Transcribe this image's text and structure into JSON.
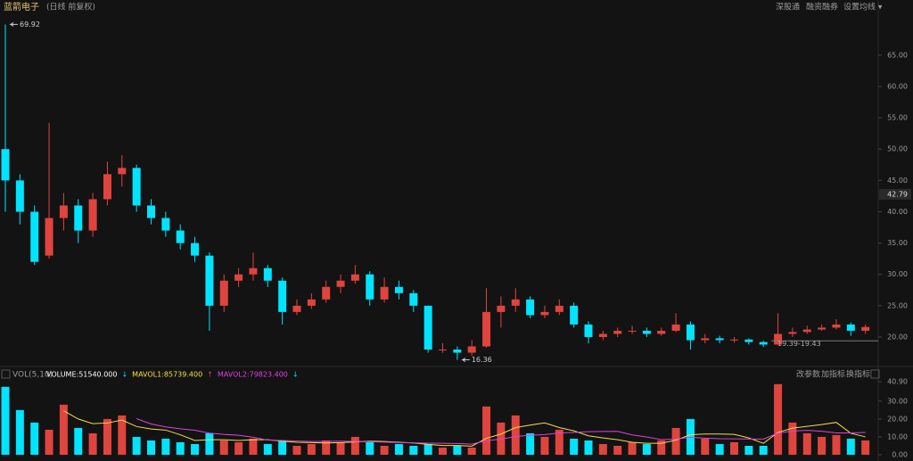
{
  "header": {
    "name": "蓝箭电子",
    "mode": "(日线 前复权)",
    "buttons": [
      "深股通",
      "融资融券",
      "设置均线 ▾"
    ]
  },
  "chart_data": [
    {
      "type": "candlestick",
      "up_color": "#e0443e",
      "down_color": "#00e4ff",
      "open": [
        50,
        45,
        40,
        33,
        39,
        41,
        37,
        42,
        46,
        47,
        41,
        39,
        37,
        35,
        33,
        25,
        29,
        30,
        31,
        29,
        24,
        25,
        26,
        28,
        29,
        30,
        26,
        28,
        27,
        25,
        18,
        18,
        17.5,
        18.5,
        24,
        25,
        26,
        23.5,
        24,
        25,
        22,
        20,
        20.5,
        21,
        21,
        20.5,
        21,
        22,
        19.5,
        19.8,
        19.5,
        19.6,
        19.2,
        18.8,
        20.5,
        20.8,
        21.2,
        21.5,
        22,
        21
      ],
      "high": [
        69.92,
        46,
        41,
        54.2,
        43,
        42,
        43,
        48,
        49,
        47.5,
        42,
        40,
        38,
        36,
        33.5,
        30,
        31,
        33.5,
        31.5,
        29.5,
        26,
        27,
        29,
        30,
        31.5,
        30.5,
        29.5,
        29,
        27.5,
        25,
        19,
        18.5,
        19.5,
        27.8,
        26.5,
        27.8,
        26.5,
        25,
        26,
        25.5,
        22.5,
        21,
        21.5,
        21.8,
        21.5,
        21.5,
        23.8,
        22.5,
        20.5,
        20.2,
        20,
        19.8,
        19.4,
        23.8,
        21.5,
        21.8,
        22,
        22.8,
        22.3,
        22
      ],
      "low": [
        40,
        38,
        31.5,
        32.5,
        37,
        35,
        36,
        41,
        44,
        40,
        38,
        36,
        34,
        32,
        21,
        24,
        28,
        29,
        28,
        22,
        23.5,
        24.5,
        25.5,
        27,
        28.5,
        25,
        25.5,
        26,
        24,
        17.5,
        17.5,
        16.36,
        17,
        18.3,
        21.5,
        24,
        23,
        23,
        23.5,
        21.5,
        19,
        19.5,
        20,
        20.5,
        20,
        20.2,
        20.8,
        18,
        19,
        19,
        19.1,
        18.8,
        18.4,
        18.7,
        20,
        20.5,
        21,
        21.2,
        20.2,
        20.5
      ],
      "close": [
        45,
        40,
        32,
        39,
        41,
        37,
        42,
        46,
        47,
        41,
        39,
        37,
        35,
        33,
        25,
        29,
        30,
        31,
        29,
        24,
        25,
        26,
        28,
        29,
        30,
        26,
        28,
        27,
        25,
        18,
        18,
        17.5,
        18.5,
        24,
        25,
        26,
        23.5,
        24,
        25,
        22,
        20,
        20.5,
        21,
        21,
        20.5,
        21,
        22,
        19.5,
        19.8,
        19.5,
        19.6,
        19.2,
        18.8,
        20.5,
        20.8,
        21.2,
        21.5,
        22,
        21,
        21.6
      ],
      "ylim": [
        15.44,
        72.1
      ],
      "yticks": [
        {
          "value": 20,
          "label": "20.00"
        },
        {
          "value": 25,
          "label": "25.00"
        },
        {
          "value": 30,
          "label": "30.00"
        },
        {
          "value": 35,
          "label": "35.00"
        },
        {
          "value": 40,
          "label": "40.00"
        },
        {
          "value": 45,
          "label": "45.00"
        },
        {
          "value": 50,
          "label": "50.00"
        },
        {
          "value": 55,
          "label": "55.00"
        },
        {
          "value": 60,
          "label": "60.00"
        },
        {
          "value": 65,
          "label": "65.00"
        }
      ],
      "max_value": 69.92,
      "min_value": 16.36,
      "range": [
        19.39,
        19.43
      ],
      "range_label": "19.39-19.43",
      "price_marker": 42.79
    },
    {
      "type": "volume",
      "title": "VOL(5,10)",
      "legend": [
        {
          "text": "VOLUME:51540.000",
          "color": "#ffffff"
        },
        {
          "text": "↓",
          "color": "#00e4ff"
        },
        {
          "text": "MAVOL1:85739.400",
          "color": "#f0e040"
        },
        {
          "text": "↑",
          "color": "#e0443e"
        },
        {
          "text": "MAVOL2:79823.400",
          "color": "#e040e0"
        },
        {
          "text": "↓",
          "color": "#00e4ff"
        }
      ],
      "buttons": [
        "改参数",
        "加指标",
        "换指标"
      ],
      "values": [
        38,
        25,
        18,
        14,
        28,
        15,
        12,
        20,
        22,
        10,
        8,
        9,
        7,
        6,
        12,
        8,
        7,
        9,
        6,
        8,
        5,
        6,
        8,
        7,
        10,
        7,
        5,
        6,
        5,
        6,
        4,
        5,
        4,
        27,
        18,
        22,
        12,
        10,
        14,
        9,
        8,
        6,
        5,
        7,
        6,
        8,
        15,
        20,
        9,
        6,
        7,
        5,
        5,
        39.5,
        18,
        12,
        10,
        11,
        9,
        8
      ],
      "series": [
        {
          "color": "#f0e040",
          "values": [
            null,
            null,
            null,
            null,
            24.6,
            20,
            17.4,
            17.8,
            19.4,
            15.8,
            14.4,
            13.8,
            11.2,
            8,
            8.4,
            8.4,
            8,
            8.4,
            8.4,
            7.6,
            7,
            6.8,
            6.6,
            6.8,
            7.2,
            7.6,
            7.4,
            7,
            6.6,
            5.8,
            5.2,
            5.2,
            4.8,
            9.2,
            11.6,
            15.2,
            16.6,
            17.8,
            15.2,
            13.4,
            10.6,
            9.4,
            8.4,
            7,
            6.4,
            6.4,
            8.2,
            11.2,
            11.6,
            11.6,
            11.4,
            9.4,
            6.4,
            12.5,
            14.9,
            15.9,
            16.9,
            18.1,
            12,
            10
          ]
        },
        {
          "color": "#e040e0",
          "values": [
            null,
            null,
            null,
            null,
            null,
            null,
            null,
            null,
            null,
            20.2,
            17.2,
            15.6,
            14.5,
            13.7,
            12.1,
            11.4,
            10.9,
            9.8,
            8.2,
            8,
            7.7,
            7.4,
            7.5,
            7.6,
            7.4,
            7.3,
            7.1,
            6.8,
            6.7,
            6.5,
            6.4,
            6.3,
            5.9,
            7.9,
            8.7,
            10.2,
            10.9,
            11.3,
            12.2,
            12.5,
            12.9,
            13,
            13.1,
            11.1,
            9.9,
            8.5,
            8.8,
            9.8,
            9.3,
            9,
            8.9,
            8.8,
            8.8,
            12.05,
            13.25,
            13.65,
            13.15,
            12.25,
            12.25,
            12.45
          ]
        }
      ],
      "ylim": [
        0,
        40.9
      ],
      "yticks": [
        {
          "value": 0,
          "label": "0.00"
        },
        {
          "value": 10,
          "label": "10.00"
        },
        {
          "value": 20,
          "label": "20.00"
        },
        {
          "value": 30,
          "label": "30.00"
        },
        {
          "value": 40.9,
          "label": "40.90"
        }
      ]
    }
  ]
}
